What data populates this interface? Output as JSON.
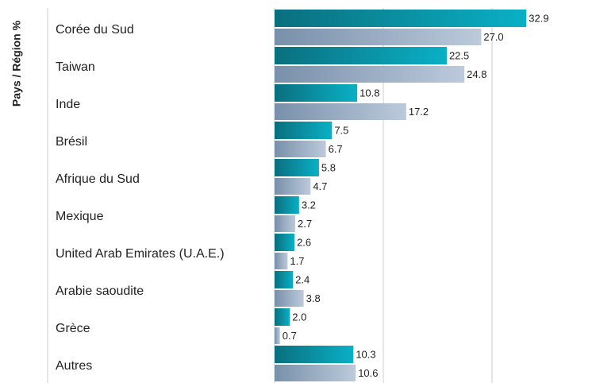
{
  "chart_data": {
    "type": "hbar",
    "ylabel": "Pays / Région %",
    "categories": [
      "Corée du Sud",
      "Taiwan",
      "Inde",
      "Brésil",
      "Afrique du Sud",
      "Mexique",
      "United Arab Emirates (U.A.E.)",
      "Arabie saoudite",
      "Grèce",
      "Autres"
    ],
    "series": [
      {
        "color": "#0ab0c6",
        "values": [
          32.9,
          22.5,
          10.8,
          7.5,
          5.8,
          3.2,
          2.6,
          2.4,
          2.0,
          10.3
        ],
        "value_labels": [
          "32.9",
          "22.5",
          "10.8",
          "7.5",
          "5.8",
          "3.2",
          "2.6",
          "2.4",
          "2.0",
          "10.3"
        ]
      },
      {
        "color": "#bccadb",
        "values": [
          27.0,
          24.8,
          17.2,
          6.7,
          4.7,
          2.7,
          1.7,
          3.8,
          0.7,
          10.6
        ],
        "value_labels": [
          "27.0",
          "24.8",
          "17.2",
          "6.7",
          "4.7",
          "2.7",
          "1.7",
          "3.8",
          "0.7",
          "10.6"
        ]
      }
    ],
    "xlim": [
      0,
      42
    ]
  }
}
